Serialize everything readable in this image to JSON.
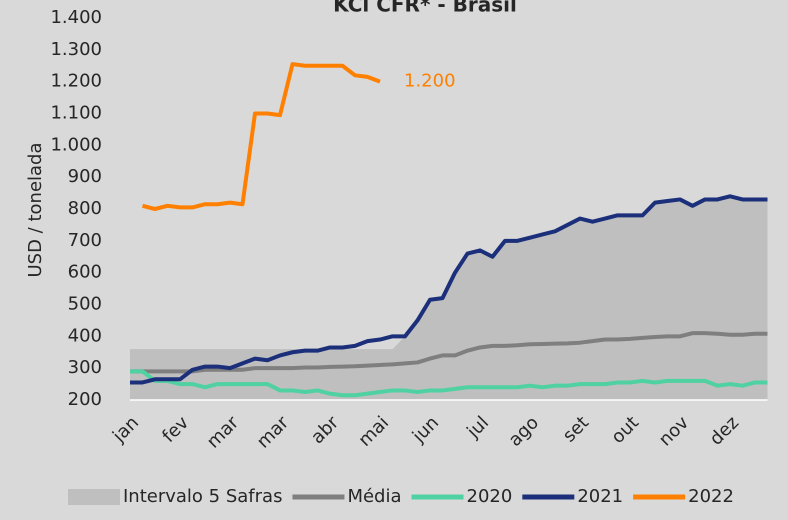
{
  "chart_data": {
    "type": "line",
    "title": "KCl CFR* - Brasil",
    "y_label": "USD / tonelada",
    "categories": [
      "jan",
      null,
      null,
      null,
      "fev",
      null,
      null,
      null,
      "mar",
      null,
      null,
      null,
      "mar",
      null,
      null,
      null,
      "abr",
      null,
      null,
      null,
      "mai",
      null,
      null,
      null,
      "jun",
      null,
      null,
      null,
      "jul",
      null,
      null,
      null,
      "ago",
      null,
      null,
      null,
      "set",
      null,
      null,
      null,
      "out",
      null,
      null,
      null,
      "nov",
      null,
      null,
      null,
      "dez",
      null,
      null,
      null
    ],
    "ylim": [
      200,
      1400
    ],
    "yticks": [
      200,
      300,
      400,
      500,
      600,
      700,
      800,
      900,
      {
        "value": 1000,
        "label": "1.000"
      },
      {
        "value": 1100,
        "label": "1.100"
      },
      {
        "value": 1200,
        "label": "1.200"
      },
      {
        "value": 1300,
        "label": "1.300"
      },
      {
        "value": 1400,
        "label": "1.400"
      }
    ],
    "series": [
      {
        "name": "Intervalo 5 Safras",
        "color": "#bfbfbf",
        "style": "area",
        "values": [
          360,
          360,
          360,
          360,
          360,
          360,
          360,
          360,
          360,
          360,
          360,
          360,
          360,
          360,
          360,
          360,
          360,
          360,
          360,
          360,
          360,
          360,
          400,
          450,
          515,
          520,
          600,
          660,
          670,
          650,
          700,
          700,
          710,
          720,
          730,
          750,
          770,
          760,
          770,
          780,
          780,
          780,
          820,
          825,
          830,
          810,
          830,
          830,
          840,
          830,
          830,
          830
        ]
      },
      {
        "name": "Média",
        "color": "#7f7f7f",
        "style": "line",
        "values": [
          290,
          290,
          290,
          290,
          290,
          290,
          295,
          295,
          295,
          295,
          300,
          300,
          300,
          300,
          302,
          302,
          304,
          305,
          306,
          308,
          310,
          312,
          315,
          318,
          330,
          340,
          340,
          355,
          365,
          370,
          370,
          372,
          375,
          376,
          377,
          378,
          380,
          385,
          390,
          390,
          392,
          395,
          398,
          400,
          400,
          410,
          410,
          408,
          405,
          405,
          408,
          408
        ]
      },
      {
        "name": "2020",
        "color": "#4fd1a1",
        "style": "line",
        "values": [
          290,
          290,
          260,
          260,
          250,
          250,
          240,
          250,
          250,
          250,
          250,
          250,
          230,
          230,
          225,
          230,
          220,
          215,
          215,
          220,
          225,
          230,
          230,
          225,
          230,
          230,
          235,
          240,
          240,
          240,
          240,
          240,
          245,
          240,
          245,
          245,
          250,
          250,
          250,
          255,
          255,
          260,
          255,
          260,
          260,
          260,
          260,
          245,
          250,
          245,
          255,
          255
        ]
      },
      {
        "name": "2021",
        "color": "#1b2f7a",
        "style": "line",
        "values": [
          255,
          255,
          265,
          265,
          265,
          295,
          305,
          305,
          300,
          315,
          330,
          325,
          340,
          350,
          355,
          355,
          365,
          365,
          370,
          385,
          390,
          400,
          400,
          450,
          515,
          520,
          600,
          660,
          670,
          650,
          700,
          700,
          710,
          720,
          730,
          750,
          770,
          760,
          770,
          780,
          780,
          780,
          820,
          825,
          830,
          810,
          830,
          830,
          840,
          830,
          830,
          830
        ]
      },
      {
        "name": "2022",
        "color": "#ff8000",
        "style": "line",
        "values": [
          null,
          810,
          800,
          810,
          805,
          805,
          815,
          815,
          820,
          815,
          1100,
          1100,
          1095,
          1255,
          1250,
          1250,
          1250,
          1250,
          1220,
          1215,
          1200,
          null,
          null,
          null,
          null,
          null,
          null,
          null,
          null,
          null,
          null,
          null,
          null,
          null,
          null,
          null,
          null,
          null,
          null,
          null,
          null,
          null,
          null,
          null,
          null,
          null,
          null,
          null,
          null,
          null,
          null,
          null
        ],
        "value_labels": [
          null,
          null,
          null,
          null,
          null,
          null,
          null,
          null,
          null,
          null,
          null,
          null,
          null,
          null,
          null,
          null,
          null,
          null,
          null,
          null,
          "1.200",
          null,
          null,
          null,
          null,
          null,
          null,
          null,
          null,
          null,
          null,
          null,
          null,
          null,
          null,
          null,
          null,
          null,
          null,
          null,
          null,
          null,
          null,
          null,
          null,
          null,
          null,
          null,
          null,
          null,
          null,
          null
        ]
      }
    ]
  }
}
